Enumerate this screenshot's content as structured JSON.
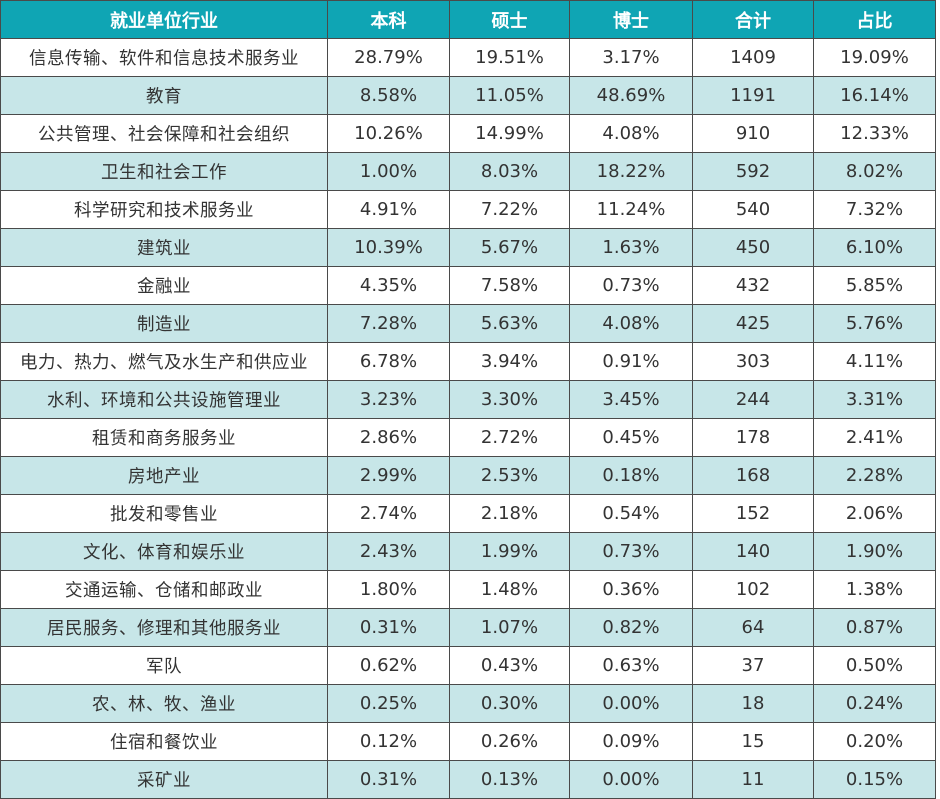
{
  "colors": {
    "header_bg": "#0fa5b4",
    "header_text": "#ffffff",
    "row_alt_bg": "#c7e6e8",
    "row_bg": "#ffffff",
    "border": "#4a4a4a",
    "text": "#333333"
  },
  "table": {
    "headers": [
      "就业单位行业",
      "本科",
      "硕士",
      "博士",
      "合计",
      "占比"
    ],
    "rows": [
      {
        "industry": "信息传输、软件和信息技术服务业",
        "bachelor": "28.79%",
        "master": "19.51%",
        "doctor": "3.17%",
        "total": "1409",
        "share": "19.09%"
      },
      {
        "industry": "教育",
        "bachelor": "8.58%",
        "master": "11.05%",
        "doctor": "48.69%",
        "total": "1191",
        "share": "16.14%"
      },
      {
        "industry": "公共管理、社会保障和社会组织",
        "bachelor": "10.26%",
        "master": "14.99%",
        "doctor": "4.08%",
        "total": "910",
        "share": "12.33%"
      },
      {
        "industry": "卫生和社会工作",
        "bachelor": "1.00%",
        "master": "8.03%",
        "doctor": "18.22%",
        "total": "592",
        "share": "8.02%"
      },
      {
        "industry": "科学研究和技术服务业",
        "bachelor": "4.91%",
        "master": "7.22%",
        "doctor": "11.24%",
        "total": "540",
        "share": "7.32%"
      },
      {
        "industry": "建筑业",
        "bachelor": "10.39%",
        "master": "5.67%",
        "doctor": "1.63%",
        "total": "450",
        "share": "6.10%"
      },
      {
        "industry": "金融业",
        "bachelor": "4.35%",
        "master": "7.58%",
        "doctor": "0.73%",
        "total": "432",
        "share": "5.85%"
      },
      {
        "industry": "制造业",
        "bachelor": "7.28%",
        "master": "5.63%",
        "doctor": "4.08%",
        "total": "425",
        "share": "5.76%"
      },
      {
        "industry": "电力、热力、燃气及水生产和供应业",
        "bachelor": "6.78%",
        "master": "3.94%",
        "doctor": "0.91%",
        "total": "303",
        "share": "4.11%"
      },
      {
        "industry": "水利、环境和公共设施管理业",
        "bachelor": "3.23%",
        "master": "3.30%",
        "doctor": "3.45%",
        "total": "244",
        "share": "3.31%"
      },
      {
        "industry": "租赁和商务服务业",
        "bachelor": "2.86%",
        "master": "2.72%",
        "doctor": "0.45%",
        "total": "178",
        "share": "2.41%"
      },
      {
        "industry": "房地产业",
        "bachelor": "2.99%",
        "master": "2.53%",
        "doctor": "0.18%",
        "total": "168",
        "share": "2.28%"
      },
      {
        "industry": "批发和零售业",
        "bachelor": "2.74%",
        "master": "2.18%",
        "doctor": "0.54%",
        "total": "152",
        "share": "2.06%"
      },
      {
        "industry": "文化、体育和娱乐业",
        "bachelor": "2.43%",
        "master": "1.99%",
        "doctor": "0.73%",
        "total": "140",
        "share": "1.90%"
      },
      {
        "industry": "交通运输、仓储和邮政业",
        "bachelor": "1.80%",
        "master": "1.48%",
        "doctor": "0.36%",
        "total": "102",
        "share": "1.38%"
      },
      {
        "industry": "居民服务、修理和其他服务业",
        "bachelor": "0.31%",
        "master": "1.07%",
        "doctor": "0.82%",
        "total": "64",
        "share": "0.87%"
      },
      {
        "industry": "军队",
        "bachelor": "0.62%",
        "master": "0.43%",
        "doctor": "0.63%",
        "total": "37",
        "share": "0.50%"
      },
      {
        "industry": "农、林、牧、渔业",
        "bachelor": "0.25%",
        "master": "0.30%",
        "doctor": "0.00%",
        "total": "18",
        "share": "0.24%"
      },
      {
        "industry": "住宿和餐饮业",
        "bachelor": "0.12%",
        "master": "0.26%",
        "doctor": "0.09%",
        "total": "15",
        "share": "0.20%"
      },
      {
        "industry": "采矿业",
        "bachelor": "0.31%",
        "master": "0.13%",
        "doctor": "0.00%",
        "total": "11",
        "share": "0.15%"
      }
    ]
  }
}
